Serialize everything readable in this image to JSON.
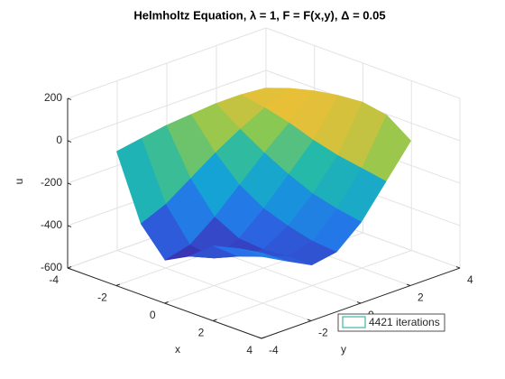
{
  "chart_data": {
    "type": "surface",
    "title": "Helmholtz Equation, λ = 1, F = F(x,y), Δ = 0.05",
    "xlabel": "x",
    "ylabel": "y",
    "zlabel": "u",
    "x": [
      -3,
      -2,
      -1,
      0,
      1,
      2,
      3
    ],
    "y": [
      -3,
      -2,
      -1,
      0,
      1,
      2,
      3
    ],
    "series": [
      {
        "name": "4421 iterations",
        "color": "#3fb6a8",
        "z": [
          [
            -50,
            -350,
            -480,
            -420,
            -330,
            -300,
            -280
          ],
          [
            -30,
            -300,
            -450,
            -470,
            -420,
            -380,
            -360
          ],
          [
            -10,
            -220,
            -360,
            -420,
            -430,
            -420,
            -420
          ],
          [
            0,
            -140,
            -250,
            -320,
            -360,
            -390,
            -400
          ],
          [
            10,
            -70,
            -140,
            -200,
            -250,
            -280,
            -300
          ],
          [
            10,
            -10,
            -40,
            -80,
            -110,
            -130,
            -150
          ],
          [
            0,
            40,
            70,
            90,
            100,
            80,
            0
          ]
        ]
      }
    ],
    "xlim": [
      -4,
      4
    ],
    "ylim": [
      -4,
      4
    ],
    "zlim": [
      -600,
      200
    ],
    "xticks": [
      -4,
      -2,
      0,
      2,
      4
    ],
    "yticks": [
      -4,
      -2,
      0,
      2,
      4
    ],
    "zticks": [
      -600,
      -400,
      -200,
      0,
      200
    ],
    "grid": true,
    "legend": "southeast",
    "colormap": "parula"
  }
}
